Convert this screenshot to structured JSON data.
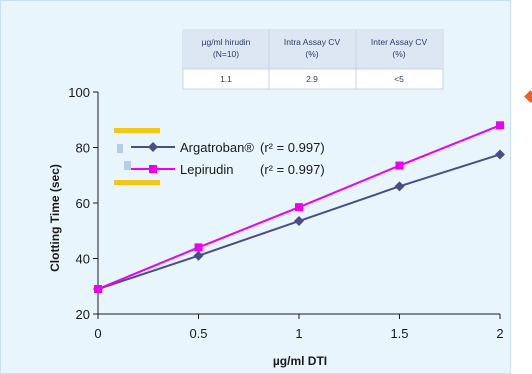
{
  "table": {
    "headers": [
      [
        "µg/ml hirudin",
        "(N=10)"
      ],
      [
        "Intra Assay CV",
        "(%)"
      ],
      [
        "Inter Assay CV",
        "(%)"
      ]
    ],
    "values": [
      "1.1",
      "2.9",
      "<5"
    ]
  },
  "chart_data": {
    "type": "line",
    "xlabel": "µg/ml DTI",
    "ylabel": "Clotting Time (sec)",
    "xlim": [
      0,
      2
    ],
    "ylim": [
      20,
      100
    ],
    "x_ticks": [
      "0",
      "0.5",
      "1",
      "1.5",
      "2"
    ],
    "y_ticks": [
      "20",
      "40",
      "60",
      "80",
      "100"
    ],
    "grid": false,
    "legend_position": "top-left",
    "series": [
      {
        "name": "Argatroban®",
        "r2_label": "(r² = 0.997)",
        "color": "#4a4e86",
        "marker": "diamond",
        "x": [
          0,
          0.5,
          1,
          1.5,
          2
        ],
        "y": [
          29,
          41,
          53.5,
          66,
          77.5
        ]
      },
      {
        "name": "Lepirudin",
        "r2_label": "(r² = 0.997)",
        "color": "#ee00ee",
        "marker": "square",
        "x": [
          0,
          0.5,
          1,
          1.5,
          2
        ],
        "y": [
          29,
          44,
          58.5,
          73.5,
          88
        ]
      }
    ]
  },
  "colors": {
    "background": "#e9f5fd",
    "accent_marker": "#e8602c",
    "legend_highlight": "#f5c518"
  }
}
